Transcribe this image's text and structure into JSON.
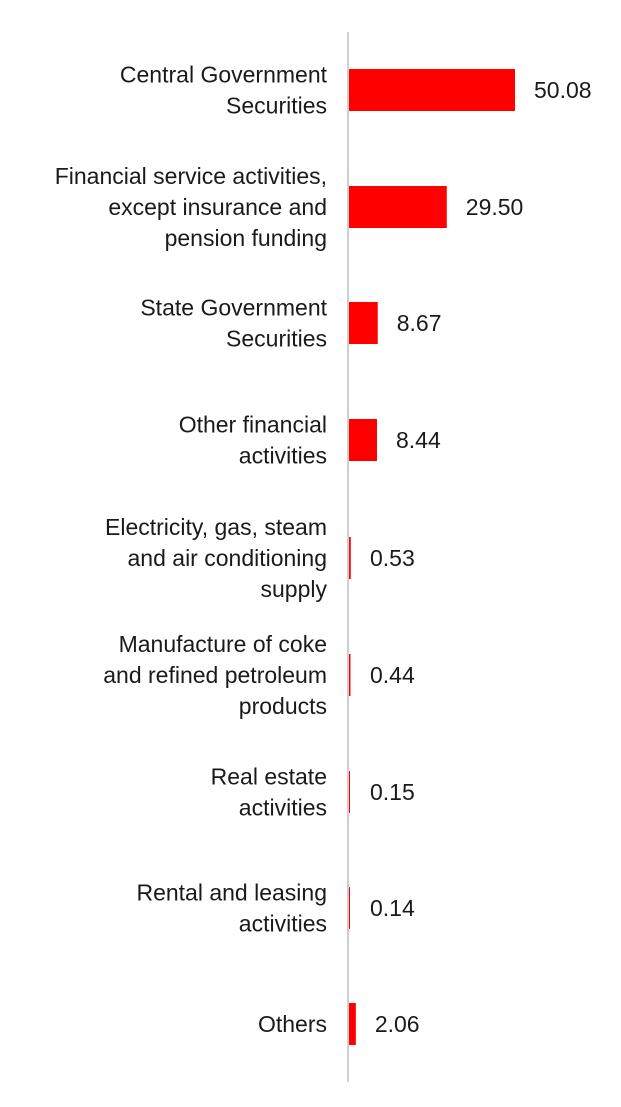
{
  "chart_data": {
    "type": "bar",
    "orientation": "horizontal",
    "categories": [
      [
        "Central Government",
        "Securities"
      ],
      [
        "Financial service activities,",
        "except insurance and",
        "pension funding"
      ],
      [
        "State Government",
        "Securities"
      ],
      [
        "Other financial",
        "activities"
      ],
      [
        "Electricity, gas, steam",
        "and air conditioning",
        "supply"
      ],
      [
        "Manufacture of coke",
        "and refined petroleum",
        "products"
      ],
      [
        "Real estate",
        "activities"
      ],
      [
        "Rental and leasing",
        "activities"
      ],
      [
        "Others"
      ]
    ],
    "values": [
      50.08,
      29.5,
      8.67,
      8.44,
      0.53,
      0.44,
      0.15,
      0.14,
      2.06
    ],
    "value_labels": [
      "50.08",
      "29.50",
      "8.67",
      "8.44",
      "0.53",
      "0.44",
      "0.15",
      "0.14",
      "2.06"
    ],
    "title": "",
    "xlabel": "",
    "ylabel": "",
    "xlim": [
      0,
      50.08
    ],
    "grid": false,
    "legend": "none",
    "colors": {
      "bar": "#ff0000",
      "axis": "#d0d0d0",
      "text": "#1a1a1a"
    }
  }
}
